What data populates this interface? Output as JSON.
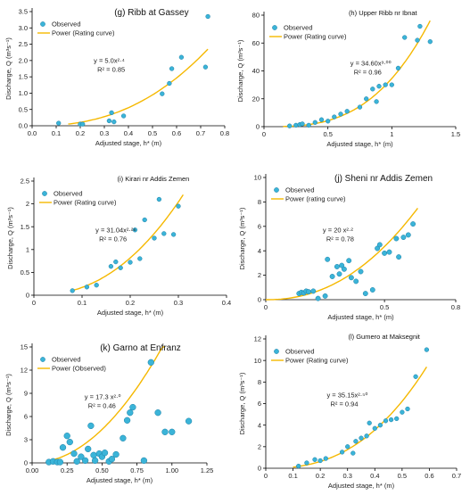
{
  "colors": {
    "observed": "#3bb4d8",
    "observed_stroke": "#1b7fa6",
    "curve": "#f5b800",
    "axis": "#000000"
  },
  "chart_data": [
    {
      "type": "scatter",
      "title": "(g) Ribb at Gassey",
      "title_size": "l",
      "xlabel": "Adjusted stage, h* (m)",
      "ylabel": "Discharge, Q (m³s⁻¹)",
      "xlim": [
        0,
        0.8
      ],
      "ylim": [
        0,
        3.5
      ],
      "xticks": [
        "0.0",
        "0.1",
        "0.2",
        "0.3",
        "0.4",
        "0.5",
        "0.6",
        "0.7",
        "0.8"
      ],
      "xtick_vals": [
        0,
        0.1,
        0.2,
        0.3,
        0.4,
        0.5,
        0.6,
        0.7,
        0.8
      ],
      "yticks": [
        "0.0",
        "0.5",
        "1.0",
        "1.5",
        "2.0",
        "2.5",
        "3.0",
        "3.5"
      ],
      "ytick_vals": [
        0,
        0.5,
        1,
        1.5,
        2,
        2.5,
        3,
        3.5
      ],
      "legend": {
        "position": "top-left",
        "observed": "Observed",
        "curve": "Power (Rating curve)"
      },
      "equation": "y = 5.0x²·⁴",
      "r2": "R² = 0.85",
      "eq_pos": "center",
      "curve": {
        "a": 5.0,
        "b": 2.4,
        "x0": 0.15,
        "x1": 0.73
      },
      "marker": "s",
      "points": [
        [
          0.11,
          0.08
        ],
        [
          0.2,
          0.05
        ],
        [
          0.21,
          0.05
        ],
        [
          0.32,
          0.15
        ],
        [
          0.33,
          0.4
        ],
        [
          0.34,
          0.12
        ],
        [
          0.38,
          0.3
        ],
        [
          0.54,
          0.98
        ],
        [
          0.57,
          1.3
        ],
        [
          0.58,
          1.75
        ],
        [
          0.62,
          2.1
        ],
        [
          0.72,
          1.8
        ],
        [
          0.73,
          3.35
        ]
      ]
    },
    {
      "type": "scatter",
      "title": "(h) Upper Ribb nr Ibnat",
      "title_size": "s",
      "xlabel": "Adjusted stage, h* (m)",
      "ylabel": "Discharge, Q (m³s⁻¹)",
      "xlim": [
        0,
        1.5
      ],
      "ylim": [
        0,
        80
      ],
      "xticks": [
        "0",
        "0.5",
        "1",
        "1.5"
      ],
      "xtick_vals": [
        0,
        0.5,
        1,
        1.5
      ],
      "yticks": [
        "0",
        "20",
        "40",
        "60",
        "80"
      ],
      "ytick_vals": [
        0,
        20,
        40,
        60,
        80
      ],
      "legend": {
        "position": "top-left",
        "observed": "Observed",
        "curve": "Power (Rating curve)"
      },
      "equation": "y = 34.60x³·⁰⁰",
      "r2": "R² = 0.96",
      "eq_pos": "center-right",
      "curve": {
        "a": 34.6,
        "b": 3.0,
        "x0": 0.15,
        "x1": 1.3
      },
      "marker": "s",
      "points": [
        [
          0.2,
          0.5
        ],
        [
          0.25,
          1
        ],
        [
          0.28,
          1.5
        ],
        [
          0.3,
          2
        ],
        [
          0.35,
          1
        ],
        [
          0.4,
          3
        ],
        [
          0.45,
          5
        ],
        [
          0.5,
          4
        ],
        [
          0.55,
          7
        ],
        [
          0.6,
          9
        ],
        [
          0.65,
          11
        ],
        [
          0.75,
          14
        ],
        [
          0.8,
          20
        ],
        [
          0.85,
          27
        ],
        [
          0.88,
          18
        ],
        [
          0.9,
          29
        ],
        [
          0.95,
          30
        ],
        [
          1.0,
          30
        ],
        [
          1.05,
          42
        ],
        [
          1.1,
          64
        ],
        [
          1.2,
          62
        ],
        [
          1.22,
          72
        ],
        [
          1.3,
          61
        ]
      ]
    },
    {
      "type": "scatter",
      "title": "(i) Kirari nr Addis Zemen",
      "title_size": "s",
      "xlabel": "Adjusted stage, h* (m)",
      "ylabel": "Discharge, Q (m³s⁻¹)",
      "xlim": [
        0,
        0.4
      ],
      "ylim": [
        0,
        2.5
      ],
      "xticks": [
        "0",
        "0.1",
        "0.2",
        "0.3",
        "0.4"
      ],
      "xtick_vals": [
        0,
        0.1,
        0.2,
        0.3,
        0.4
      ],
      "yticks": [
        "0",
        "0.5",
        "1",
        "1.5",
        "2",
        "2.5"
      ],
      "ytick_vals": [
        0,
        0.5,
        1,
        1.5,
        2,
        2.5
      ],
      "legend": {
        "position": "top-left",
        "observed": "Observed",
        "curve": "Power (Rating curve)"
      },
      "equation": "y = 31.04x²·²⁶",
      "r2": "R² = 0.76",
      "eq_pos": "center",
      "curve": {
        "a": 31.04,
        "b": 2.26,
        "x0": 0.08,
        "x1": 0.31
      },
      "marker": "s",
      "points": [
        [
          0.08,
          0.1
        ],
        [
          0.11,
          0.18
        ],
        [
          0.13,
          0.22
        ],
        [
          0.16,
          0.63
        ],
        [
          0.17,
          0.73
        ],
        [
          0.18,
          0.6
        ],
        [
          0.2,
          0.72
        ],
        [
          0.21,
          1.43
        ],
        [
          0.22,
          0.8
        ],
        [
          0.23,
          1.65
        ],
        [
          0.25,
          1.25
        ],
        [
          0.26,
          2.1
        ],
        [
          0.27,
          1.35
        ],
        [
          0.29,
          1.33
        ],
        [
          0.3,
          1.95
        ]
      ]
    },
    {
      "type": "scatter",
      "title": "(j) Sheni nr Addis Zemen",
      "title_size": "l",
      "xlabel": "Adjusted stage, h* (m)",
      "ylabel": "Discharge, Q (m³s⁻¹)",
      "xlim": [
        0,
        0.8
      ],
      "ylim": [
        0,
        10
      ],
      "xticks": [
        "0",
        "0.5",
        "0.8"
      ],
      "xtick_vals": [
        0,
        0.5,
        0.8
      ],
      "yticks": [
        "0",
        "2",
        "4",
        "6",
        "8",
        "10"
      ],
      "ytick_vals": [
        0,
        2,
        4,
        6,
        8,
        10
      ],
      "legend": {
        "position": "top-left",
        "observed": "Observed",
        "curve": "Power (rating curve)"
      },
      "equation": "y = 20 x²·²",
      "r2": "R² = 0.78",
      "eq_pos": "center-left",
      "curve": {
        "a": 20,
        "b": 2.2,
        "x0": 0.0,
        "x1": 0.64
      },
      "marker": "m",
      "points": [
        [
          0.14,
          0.5
        ],
        [
          0.15,
          0.6
        ],
        [
          0.16,
          0.55
        ],
        [
          0.17,
          0.7
        ],
        [
          0.18,
          0.65
        ],
        [
          0.2,
          0.7
        ],
        [
          0.22,
          0.1
        ],
        [
          0.25,
          0.3
        ],
        [
          0.26,
          3.3
        ],
        [
          0.28,
          1.9
        ],
        [
          0.3,
          2.7
        ],
        [
          0.31,
          2.1
        ],
        [
          0.32,
          2.8
        ],
        [
          0.33,
          2.5
        ],
        [
          0.35,
          3.2
        ],
        [
          0.36,
          1.8
        ],
        [
          0.38,
          1.5
        ],
        [
          0.4,
          2.3
        ],
        [
          0.42,
          0.5
        ],
        [
          0.45,
          0.8
        ],
        [
          0.47,
          4.2
        ],
        [
          0.48,
          4.5
        ],
        [
          0.5,
          3.8
        ],
        [
          0.52,
          3.9
        ],
        [
          0.55,
          5.0
        ],
        [
          0.56,
          3.5
        ],
        [
          0.58,
          5.1
        ],
        [
          0.6,
          5.3
        ],
        [
          0.62,
          6.2
        ]
      ]
    },
    {
      "type": "scatter",
      "title": "(k) Garno at Enfranz",
      "title_size": "l",
      "xlabel": "Adjusted stage, h* (m)",
      "ylabel": "Discharge, Q (m³s⁻¹)",
      "xlim": [
        0,
        1.25
      ],
      "ylim": [
        0,
        15
      ],
      "xticks": [
        "0.00",
        "0.25",
        "0.50",
        "0.75",
        "1.00",
        "1.25"
      ],
      "xtick_vals": [
        0,
        0.25,
        0.5,
        0.75,
        1,
        1.25
      ],
      "yticks": [
        "0",
        "3",
        "6",
        "9",
        "12",
        "15"
      ],
      "ytick_vals": [
        0,
        3,
        6,
        9,
        12,
        15
      ],
      "legend": {
        "position": "top-left",
        "observed": "Observed",
        "curve": "Power (Observed)"
      },
      "equation": "y = 17.3 x²·⁰",
      "r2": "R² = 0.46",
      "eq_pos": "center-left",
      "curve": {
        "a": 17.3,
        "b": 2.0,
        "x0": 0.1,
        "x1": 0.95
      },
      "marker": "l",
      "points": [
        [
          0.12,
          0.1
        ],
        [
          0.15,
          0.2
        ],
        [
          0.18,
          0.1
        ],
        [
          0.2,
          0.1
        ],
        [
          0.22,
          2.0
        ],
        [
          0.25,
          3.5
        ],
        [
          0.27,
          2.7
        ],
        [
          0.3,
          1.2
        ],
        [
          0.32,
          0.2
        ],
        [
          0.35,
          0.8
        ],
        [
          0.38,
          0.3
        ],
        [
          0.4,
          1.8
        ],
        [
          0.42,
          4.8
        ],
        [
          0.44,
          1.0
        ],
        [
          0.45,
          0.3
        ],
        [
          0.48,
          1.2
        ],
        [
          0.5,
          0.8
        ],
        [
          0.52,
          1.3
        ],
        [
          0.55,
          0.2
        ],
        [
          0.57,
          0.5
        ],
        [
          0.6,
          1.1
        ],
        [
          0.65,
          3.2
        ],
        [
          0.68,
          5.5
        ],
        [
          0.7,
          6.5
        ],
        [
          0.72,
          7.2
        ],
        [
          0.8,
          0.3
        ],
        [
          0.85,
          13.0
        ],
        [
          0.9,
          6.5
        ],
        [
          0.95,
          4.0
        ],
        [
          1.0,
          4.0
        ],
        [
          1.12,
          5.4
        ]
      ]
    },
    {
      "type": "scatter",
      "title": "(l) Gumero at Maksegnit",
      "title_size": "s",
      "xlabel": "Adjusted stage, h* (m)",
      "ylabel": "Discharge, Q (m³s⁻¹)",
      "xlim": [
        0,
        0.7
      ],
      "ylim": [
        0,
        12
      ],
      "xticks": [
        "0",
        "0.1",
        "0.2",
        "0.3",
        "0.4",
        "0.5",
        "0.6",
        "0.7"
      ],
      "xtick_vals": [
        0,
        0.1,
        0.2,
        0.3,
        0.4,
        0.5,
        0.6,
        0.7
      ],
      "yticks": [
        "0",
        "2",
        "4",
        "6",
        "8",
        "10",
        "12"
      ],
      "ytick_vals": [
        0,
        2,
        4,
        6,
        8,
        10,
        12
      ],
      "legend": {
        "position": "top-left",
        "observed": "Observed",
        "curve": "Power (Rating curve)"
      },
      "equation": "y = 35.15x²·⁵⁰",
      "r2": "R² = 0.94",
      "eq_pos": "center",
      "curve": {
        "a": 35.15,
        "b": 2.5,
        "x0": 0.1,
        "x1": 0.59
      },
      "marker": "s",
      "points": [
        [
          0.12,
          0.2
        ],
        [
          0.15,
          0.5
        ],
        [
          0.18,
          0.8
        ],
        [
          0.2,
          0.7
        ],
        [
          0.22,
          0.9
        ],
        [
          0.28,
          1.5
        ],
        [
          0.3,
          2.0
        ],
        [
          0.32,
          1.4
        ],
        [
          0.33,
          2.5
        ],
        [
          0.35,
          2.8
        ],
        [
          0.37,
          3.0
        ],
        [
          0.38,
          4.2
        ],
        [
          0.4,
          3.7
        ],
        [
          0.42,
          4.0
        ],
        [
          0.44,
          4.4
        ],
        [
          0.46,
          4.5
        ],
        [
          0.48,
          4.6
        ],
        [
          0.5,
          5.2
        ],
        [
          0.52,
          5.5
        ],
        [
          0.55,
          8.5
        ],
        [
          0.59,
          11.0
        ]
      ]
    }
  ]
}
